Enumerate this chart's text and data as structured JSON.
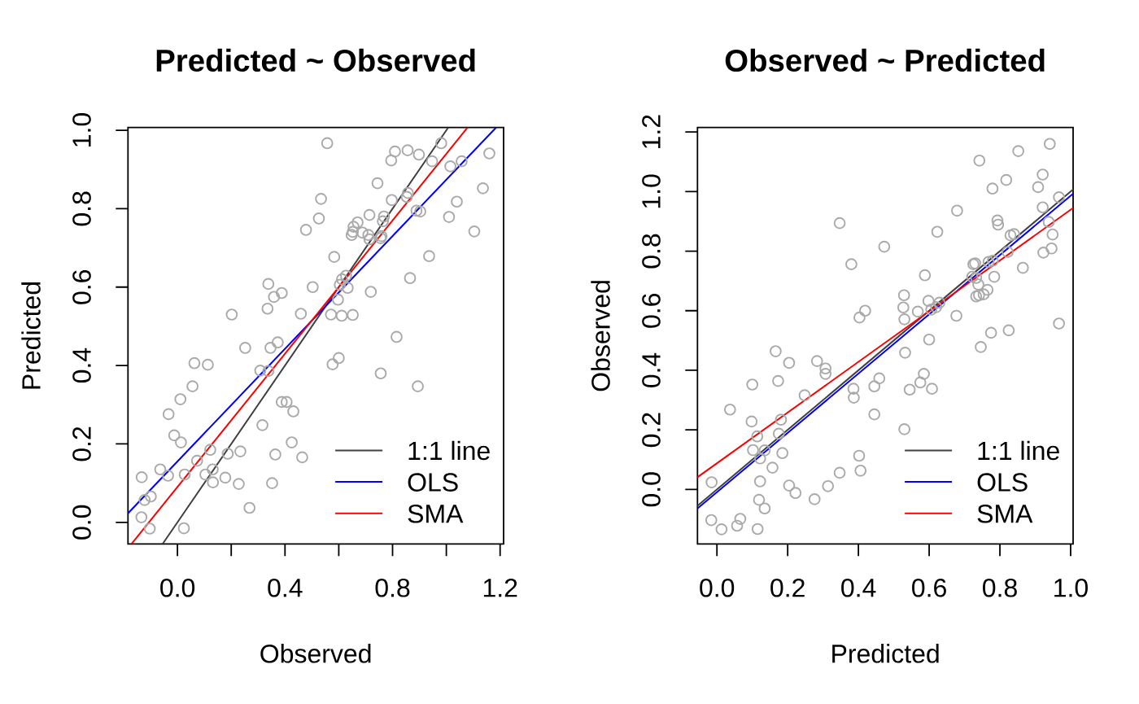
{
  "chart_data": [
    {
      "type": "scatter",
      "title": "Predicted ~ Observed",
      "xlabel": "Observed",
      "ylabel": "Predicted",
      "xlim": [
        -0.184,
        1.213
      ],
      "ylim": [
        -0.055,
        1.007
      ],
      "xticks": [
        {
          "value": 0,
          "label": "0.0"
        },
        {
          "value": 0.2,
          "label": null
        },
        {
          "value": 0.4,
          "label": "0.4"
        },
        {
          "value": 0.6,
          "label": null
        },
        {
          "value": 0.8,
          "label": "0.8"
        },
        {
          "value": 1.0,
          "label": null
        },
        {
          "value": 1.2,
          "label": "1.2"
        }
      ],
      "yticks": [
        {
          "value": 0,
          "label": "0.0"
        },
        {
          "value": 0.2,
          "label": "0.2"
        },
        {
          "value": 0.4,
          "label": "0.4"
        },
        {
          "value": 0.6,
          "label": "0.6"
        },
        {
          "value": 0.8,
          "label": "0.8"
        },
        {
          "value": 1.0,
          "label": "1.0"
        }
      ],
      "legend": "bottom right",
      "series": [
        {
          "color": "#a9a9a9",
          "marker": "circle",
          "x": [
            0.557,
            0.981,
            0.809,
            0.856,
            0.898,
            0.795,
            0.947,
            1.015,
            1.057,
            1.16,
            0.744,
            0.534,
            0.857,
            0.853,
            0.797,
            1.136,
            1.039,
            0.526,
            0.714,
            0.889,
            0.903,
            0.768,
            0.764,
            1.01,
            0.478,
            0.67,
            0.655,
            0.652,
            0.648,
            0.688,
            0.71,
            0.714,
            0.759,
            0.756,
            1.104,
            0.583,
            0.936,
            0.865,
            0.338,
            0.503,
            0.627,
            0.612,
            0.604,
            0.633,
            0.719,
            0.388,
            0.359,
            0.597,
            0.335,
            0.202,
            0.459,
            0.571,
            0.611,
            0.652,
            0.815,
            0.252,
            0.346,
            0.373,
            0.063,
            0.113,
            0.577,
            0.6,
            0.308,
            0.338,
            0.756,
            0.894,
            0.056,
            0.011,
            0.388,
            0.406,
            0.431,
            -0.033,
            0.316,
            -0.012,
            0.013,
            0.425,
            0.122,
            0.187,
            0.234,
            0.364,
            0.464,
            0.073,
            -0.064,
            -0.035,
            0.027,
            0.104,
            0.131,
            0.132,
            0.178,
            0.228,
            0.352,
            -0.133,
            -0.122,
            -0.099,
            -0.134,
            -0.103,
            0.024,
            0.268
          ],
          "values": [
            0.967,
            0.967,
            0.946,
            0.949,
            0.938,
            0.923,
            0.921,
            0.908,
            0.921,
            0.941,
            0.865,
            0.825,
            0.84,
            0.83,
            0.822,
            0.852,
            0.818,
            0.775,
            0.784,
            0.795,
            0.793,
            0.78,
            0.768,
            0.779,
            0.746,
            0.765,
            0.754,
            0.741,
            0.733,
            0.739,
            0.733,
            0.722,
            0.73,
            0.725,
            0.742,
            0.677,
            0.679,
            0.623,
            0.608,
            0.6,
            0.629,
            0.62,
            0.606,
            0.598,
            0.588,
            0.585,
            0.575,
            0.568,
            0.545,
            0.53,
            0.532,
            0.53,
            0.527,
            0.529,
            0.473,
            0.445,
            0.445,
            0.459,
            0.406,
            0.402,
            0.403,
            0.419,
            0.387,
            0.386,
            0.38,
            0.347,
            0.347,
            0.314,
            0.307,
            0.307,
            0.283,
            0.276,
            0.248,
            0.222,
            0.204,
            0.204,
            0.185,
            0.175,
            0.181,
            0.173,
            0.166,
            0.157,
            0.135,
            0.119,
            0.122,
            0.122,
            0.135,
            0.102,
            0.114,
            0.098,
            0.1,
            0.115,
            0.057,
            0.066,
            0.013,
            -0.016,
            -0.015,
            0.037
          ]
        },
        {
          "type": "line",
          "name": "1:1 line",
          "color": "#404040",
          "x": [
            -0.055,
            1.007
          ],
          "values": [
            -0.055,
            1.007
          ]
        },
        {
          "type": "line",
          "name": "OLS",
          "color": "#0000ff",
          "x": [
            -0.184,
            1.185
          ],
          "values": [
            0.023,
            1.007
          ]
        },
        {
          "type": "line",
          "name": "SMA",
          "color": "#ff0000",
          "x": [
            -0.171,
            1.079
          ],
          "values": [
            -0.055,
            1.007
          ]
        }
      ]
    },
    {
      "type": "scatter",
      "title": "Observed ~ Predicted",
      "xlabel": "Predicted",
      "ylabel": "Observed",
      "xlim": [
        -0.055,
        1.007
      ],
      "ylim": [
        -0.183,
        1.215
      ],
      "xticks": [
        {
          "value": 0,
          "label": "0.0"
        },
        {
          "value": 0.2,
          "label": "0.2"
        },
        {
          "value": 0.4,
          "label": "0.4"
        },
        {
          "value": 0.6,
          "label": "0.6"
        },
        {
          "value": 0.8,
          "label": "0.8"
        },
        {
          "value": 1.0,
          "label": "1.0"
        }
      ],
      "yticks": [
        {
          "value": 0,
          "label": "0.0"
        },
        {
          "value": 0.2,
          "label": "0.2"
        },
        {
          "value": 0.4,
          "label": "0.4"
        },
        {
          "value": 0.6,
          "label": "0.6"
        },
        {
          "value": 0.8,
          "label": "0.8"
        },
        {
          "value": 1.0,
          "label": "1.0"
        },
        {
          "value": 1.2,
          "label": "1.2"
        }
      ],
      "legend": "bottom right",
      "series": [
        {
          "color": "#a9a9a9",
          "marker": "circle",
          "x": [
            0.967,
            0.967,
            0.946,
            0.949,
            0.938,
            0.923,
            0.921,
            0.908,
            0.921,
            0.941,
            0.865,
            0.825,
            0.84,
            0.83,
            0.822,
            0.852,
            0.818,
            0.775,
            0.784,
            0.795,
            0.793,
            0.78,
            0.768,
            0.779,
            0.746,
            0.765,
            0.754,
            0.741,
            0.733,
            0.739,
            0.733,
            0.722,
            0.73,
            0.725,
            0.742,
            0.677,
            0.679,
            0.623,
            0.608,
            0.6,
            0.629,
            0.62,
            0.606,
            0.598,
            0.588,
            0.585,
            0.575,
            0.568,
            0.545,
            0.53,
            0.532,
            0.53,
            0.527,
            0.529,
            0.473,
            0.445,
            0.445,
            0.459,
            0.406,
            0.402,
            0.403,
            0.419,
            0.387,
            0.386,
            0.38,
            0.347,
            0.347,
            0.314,
            0.307,
            0.307,
            0.283,
            0.276,
            0.248,
            0.222,
            0.204,
            0.204,
            0.185,
            0.175,
            0.181,
            0.173,
            0.166,
            0.157,
            0.135,
            0.119,
            0.122,
            0.122,
            0.135,
            0.102,
            0.114,
            0.098,
            0.1,
            0.115,
            0.057,
            0.066,
            0.013,
            -0.016,
            -0.015,
            0.037
          ],
          "values": [
            0.557,
            0.981,
            0.809,
            0.856,
            0.898,
            0.795,
            0.947,
            1.015,
            1.057,
            1.16,
            0.744,
            0.534,
            0.857,
            0.853,
            0.797,
            1.136,
            1.039,
            0.526,
            0.714,
            0.889,
            0.903,
            0.768,
            0.764,
            1.01,
            0.478,
            0.67,
            0.655,
            0.652,
            0.648,
            0.688,
            0.71,
            0.714,
            0.759,
            0.756,
            1.104,
            0.583,
            0.936,
            0.865,
            0.338,
            0.503,
            0.627,
            0.612,
            0.604,
            0.633,
            0.719,
            0.388,
            0.359,
            0.597,
            0.335,
            0.202,
            0.459,
            0.571,
            0.611,
            0.652,
            0.815,
            0.252,
            0.346,
            0.373,
            0.063,
            0.113,
            0.577,
            0.6,
            0.308,
            0.338,
            0.756,
            0.894,
            0.056,
            0.011,
            0.388,
            0.406,
            0.431,
            -0.033,
            0.316,
            -0.012,
            0.013,
            0.425,
            0.122,
            0.187,
            0.234,
            0.364,
            0.464,
            0.073,
            -0.064,
            -0.035,
            0.027,
            0.104,
            0.131,
            0.132,
            0.178,
            0.228,
            0.352,
            -0.133,
            -0.122,
            -0.099,
            -0.134,
            -0.103,
            0.024,
            0.268
          ]
        },
        {
          "type": "line",
          "name": "1:1 line",
          "color": "#404040",
          "x": [
            -0.055,
            1.007
          ],
          "values": [
            -0.055,
            1.007
          ]
        },
        {
          "type": "line",
          "name": "OLS",
          "color": "#0000ff",
          "x": [
            -0.055,
            1.007
          ],
          "values": [
            -0.064,
            0.993
          ]
        },
        {
          "type": "line",
          "name": "SMA",
          "color": "#ff0000",
          "x": [
            -0.055,
            1.007
          ],
          "values": [
            0.041,
            0.945
          ]
        }
      ]
    }
  ]
}
